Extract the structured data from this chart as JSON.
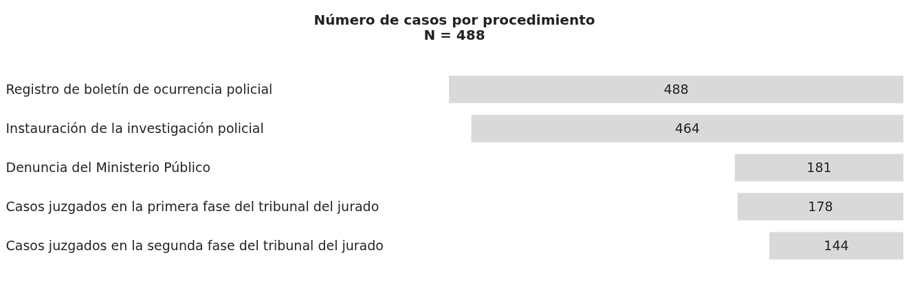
{
  "chart_data": {
    "type": "bar",
    "orientation": "horizontal",
    "title": "Número de casos por procedimiento",
    "subtitle": "N = 488",
    "categories": [
      "Registro de boletín de ocurrencia policial",
      "Instauración de la investigación policial",
      "Denuncia del Ministerio Público",
      "Casos juzgados en la primera fase del tribunal del jurado",
      "Casos juzgados en la segunda fase del tribunal del jurado"
    ],
    "values": [
      488,
      464,
      181,
      178,
      144
    ],
    "color": "#d9d9d9",
    "xlim": [
      488,
      0
    ],
    "data_labels": true,
    "tick_labels": "y",
    "grid": false,
    "legend": false
  }
}
